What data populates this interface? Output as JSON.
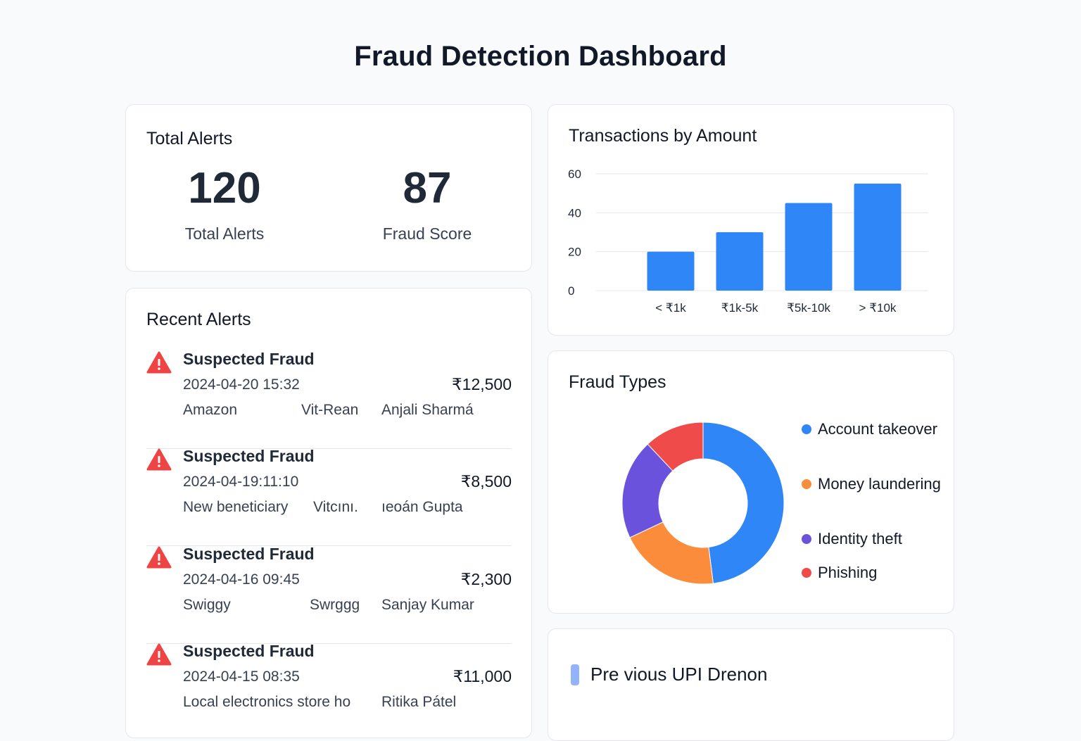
{
  "page": {
    "title": "Fraud Detection Dashboard"
  },
  "total_alerts_card": {
    "title": "Total Alerts",
    "metrics": [
      {
        "value": "120",
        "label": "Total Alerts"
      },
      {
        "value": "87",
        "label": "Fraud Score"
      }
    ]
  },
  "recent_alerts": {
    "title": "Recent Alerts",
    "items": [
      {
        "title": "Suspected Fraud",
        "time": "2024-04-20 15:32",
        "amount": "₹12,500",
        "merchant": "Amazon",
        "channel": "Vit-Rean",
        "customer": "Anjali Sharmá"
      },
      {
        "title": "Suspected Fraud",
        "time": "2024-04-19:11:10",
        "amount": "₹8,500",
        "merchant": "New beneticiary",
        "channel": "Vitcını.",
        "customer": "ıeoán Gupta"
      },
      {
        "title": "Suspected Fraud",
        "time": "2024-04-16 09:45",
        "amount": "₹2,300",
        "merchant": "Swiggy",
        "channel": "Swrggg",
        "customer": "Sanjay Kumar"
      },
      {
        "title": "Suspected Fraud",
        "time": "2024-04-15 08:35",
        "amount": "₹11,000",
        "merchant": "Local electronics store ho",
        "channel": "",
        "customer": "Ritika Pátel"
      }
    ],
    "colors": {
      "warning": "#ef4444"
    }
  },
  "transactions_card": {
    "title": "Transactions by Amount"
  },
  "chart_data": [
    {
      "type": "bar",
      "title": "Transactions by Amount",
      "categories": [
        "< ₹1k",
        "₹1k-5k",
        "₹5k-10k",
        "> ₹10k"
      ],
      "values": [
        20,
        30,
        45,
        55
      ],
      "yticks": [
        "0",
        "20",
        "40",
        "60"
      ],
      "ylim": [
        0,
        60
      ],
      "grid": true,
      "color": "#2f86f6"
    },
    {
      "type": "pie",
      "title": "Fraud Types",
      "labels": [
        "Account takeover",
        "Money laundering",
        "Identity theft",
        "Phishing"
      ],
      "values": [
        48,
        20,
        20,
        12
      ],
      "colors": [
        "#2f86f6",
        "#fb8c3c",
        "#6a52dc",
        "#ef4b4b"
      ],
      "legend": "right"
    }
  ],
  "fraud_types_card": {
    "title": "Fraud Types",
    "legend": [
      {
        "label": "Account takeover",
        "color": "#2f86f6"
      },
      {
        "label": "Money laundering",
        "color": "#fb8c3c"
      },
      {
        "label": "Identity theft",
        "color": "#6a52dc"
      },
      {
        "label": "Phishing",
        "color": "#ef4b4b"
      }
    ]
  },
  "upi_card": {
    "title": "Pre vious UPI Drenon",
    "marker_color": "#93b4f8"
  }
}
